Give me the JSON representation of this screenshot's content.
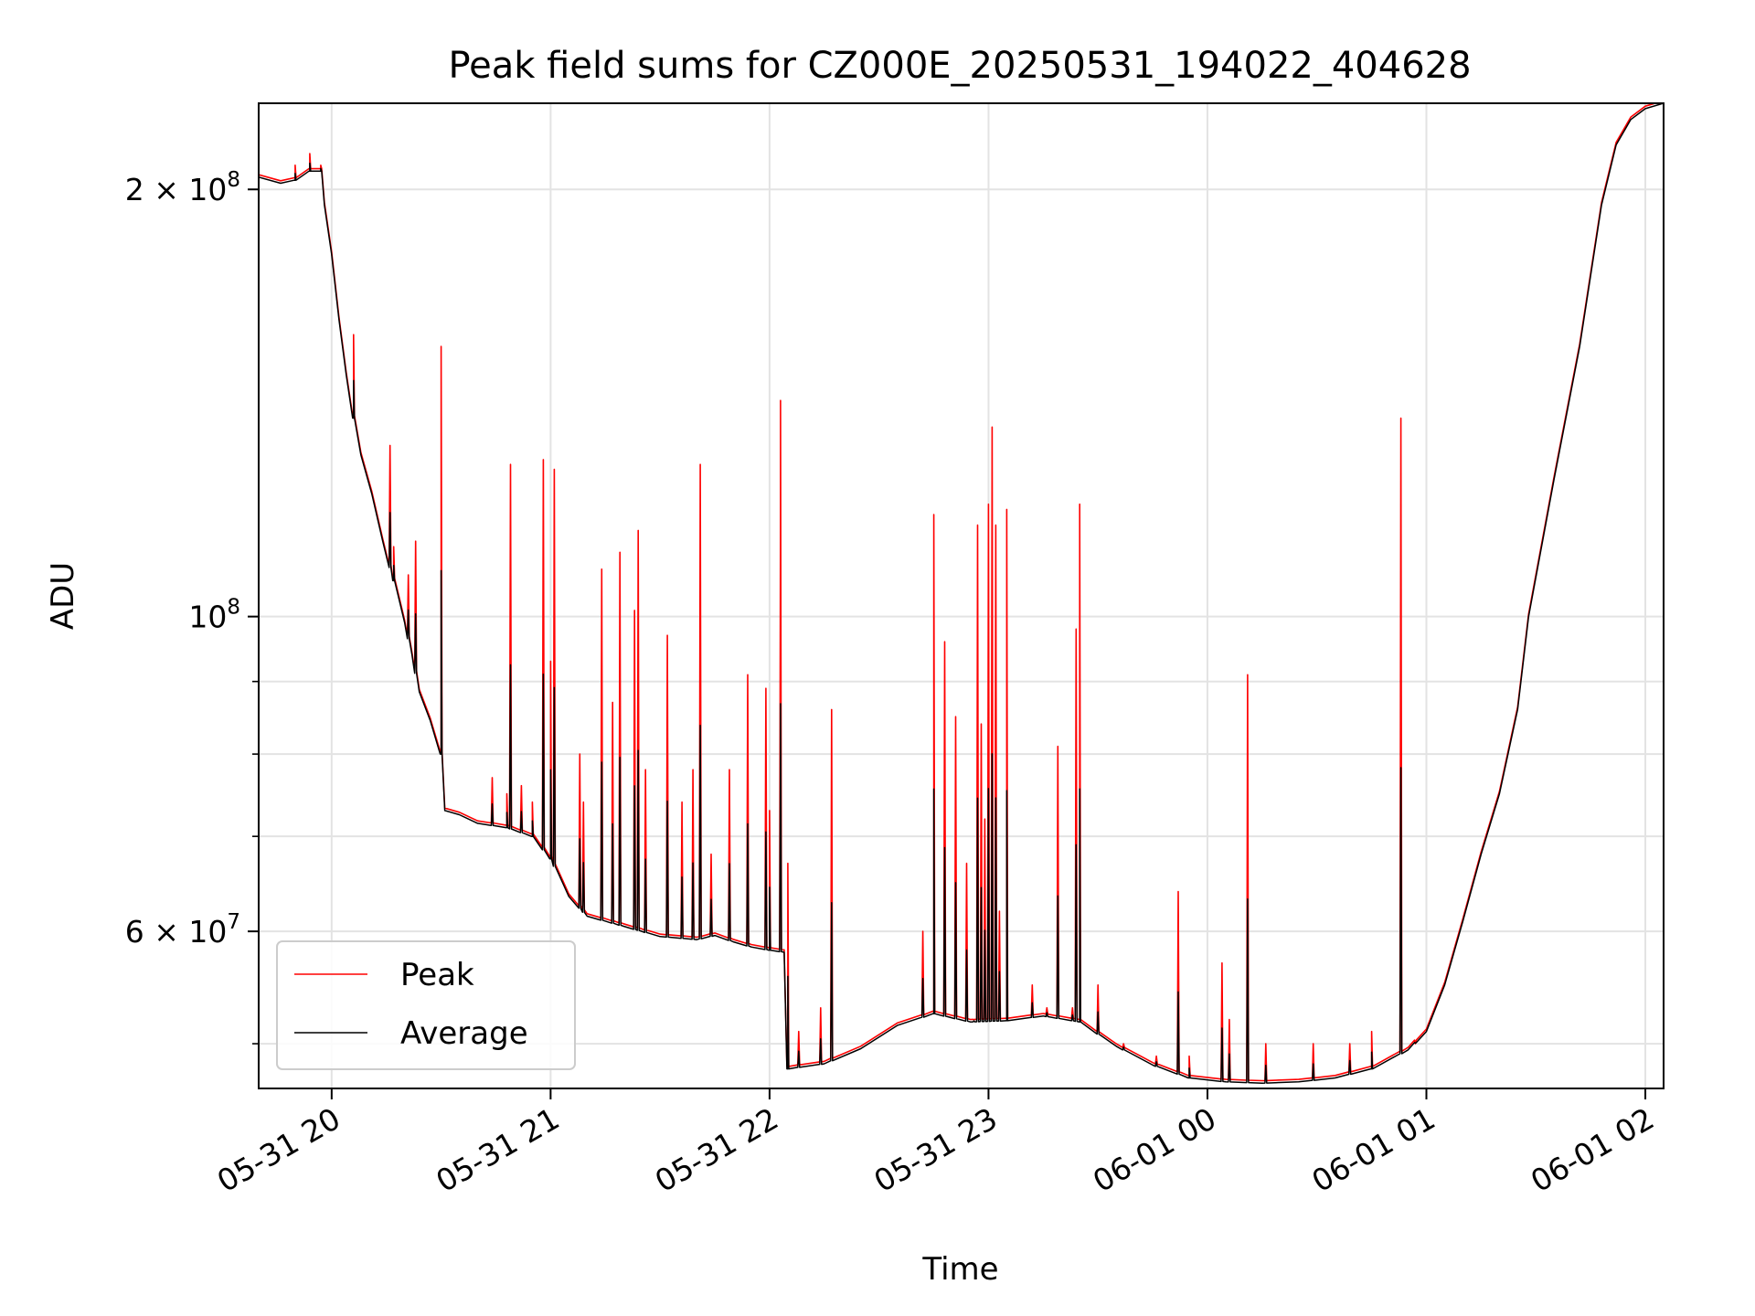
{
  "chart_data": {
    "type": "line",
    "title": "Peak field sums for CZ000E_20250531_194022_404628",
    "xlabel": "Time",
    "ylabel": "ADU",
    "yscale": "log",
    "xlim": [
      "2025-05-31 19:40",
      "2025-06-01 02:05"
    ],
    "ylim": [
      46500000,
      230000000
    ],
    "grid": true,
    "legend_position": "lower-left",
    "x_ticks": [
      {
        "t": "2025-05-31 20:00",
        "label": "05-31 20"
      },
      {
        "t": "2025-05-31 21:00",
        "label": "05-31 21"
      },
      {
        "t": "2025-05-31 22:00",
        "label": "05-31 22"
      },
      {
        "t": "2025-05-31 23:00",
        "label": "05-31 23"
      },
      {
        "t": "2025-06-01 00:00",
        "label": "06-01 00"
      },
      {
        "t": "2025-06-01 01:00",
        "label": "06-01 01"
      },
      {
        "t": "2025-06-01 02:00",
        "label": "06-01 02"
      }
    ],
    "y_major_ticks": [
      {
        "v": 60000000,
        "label": "6 × 10",
        "exp": "7"
      },
      {
        "v": 100000000,
        "label": "10",
        "exp": "8"
      },
      {
        "v": 200000000,
        "label": "2 × 10",
        "exp": "8"
      }
    ],
    "y_minor_ticks": [
      50000000,
      70000000,
      80000000,
      90000000
    ],
    "series": [
      {
        "name": "Peak",
        "color": "#ff0000",
        "base_ref": "Average",
        "spikes": [
          [
            "2025-05-31 19:50",
            208000000
          ],
          [
            "2025-05-31 19:54",
            212000000
          ],
          [
            "2025-05-31 19:57",
            208000000
          ],
          [
            "2025-05-31 20:06",
            158000000
          ],
          [
            "2025-05-31 20:16",
            132000000
          ],
          [
            "2025-05-31 20:17",
            112000000
          ],
          [
            "2025-05-31 20:21",
            107000000
          ],
          [
            "2025-05-31 20:23",
            113000000
          ],
          [
            "2025-05-31 20:30",
            155000000
          ],
          [
            "2025-05-31 20:44",
            77000000
          ],
          [
            "2025-05-31 20:48",
            75000000
          ],
          [
            "2025-05-31 20:49",
            128000000
          ],
          [
            "2025-05-31 20:52",
            76000000
          ],
          [
            "2025-05-31 20:55",
            74000000
          ],
          [
            "2025-05-31 20:58",
            129000000
          ],
          [
            "2025-05-31 21:00",
            93000000
          ],
          [
            "2025-05-31 21:01",
            127000000
          ],
          [
            "2025-05-31 21:08",
            80000000
          ],
          [
            "2025-05-31 21:09",
            74000000
          ],
          [
            "2025-05-31 21:14",
            108000000
          ],
          [
            "2025-05-31 21:17",
            87000000
          ],
          [
            "2025-05-31 21:19",
            111000000
          ],
          [
            "2025-05-31 21:23",
            101000000
          ],
          [
            "2025-05-31 21:24",
            115000000
          ],
          [
            "2025-05-31 21:26",
            78000000
          ],
          [
            "2025-05-31 21:32",
            97000000
          ],
          [
            "2025-05-31 21:36",
            74000000
          ],
          [
            "2025-05-31 21:39",
            78000000
          ],
          [
            "2025-05-31 21:41",
            128000000
          ],
          [
            "2025-05-31 21:44",
            68000000
          ],
          [
            "2025-05-31 21:49",
            78000000
          ],
          [
            "2025-05-31 21:54",
            91000000
          ],
          [
            "2025-05-31 21:59",
            89000000
          ],
          [
            "2025-05-31 22:00",
            73000000
          ],
          [
            "2025-05-31 22:03",
            120000000
          ],
          [
            "2025-05-31 22:03",
            142000000
          ],
          [
            "2025-05-31 22:05",
            67000000
          ],
          [
            "2025-05-31 22:08",
            51000000
          ],
          [
            "2025-05-31 22:14",
            53000000
          ],
          [
            "2025-05-31 22:17",
            86000000
          ],
          [
            "2025-05-31 22:42",
            60000000
          ],
          [
            "2025-05-31 22:45",
            118000000
          ],
          [
            "2025-05-31 22:48",
            96000000
          ],
          [
            "2025-05-31 22:51",
            85000000
          ],
          [
            "2025-05-31 22:54",
            67000000
          ],
          [
            "2025-05-31 22:56",
            52000000
          ],
          [
            "2025-05-31 22:57",
            116000000
          ],
          [
            "2025-05-31 22:58",
            84000000
          ],
          [
            "2025-05-31 22:59",
            72000000
          ],
          [
            "2025-05-31 23:00",
            120000000
          ],
          [
            "2025-05-31 23:01",
            136000000
          ],
          [
            "2025-05-31 23:02",
            116000000
          ],
          [
            "2025-05-31 23:03",
            62000000
          ],
          [
            "2025-05-31 23:05",
            119000000
          ],
          [
            "2025-05-31 23:12",
            55000000
          ],
          [
            "2025-05-31 23:16",
            53000000
          ],
          [
            "2025-05-31 23:19",
            81000000
          ],
          [
            "2025-05-31 23:23",
            53000000
          ],
          [
            "2025-05-31 23:24",
            98000000
          ],
          [
            "2025-05-31 23:25",
            120000000
          ],
          [
            "2025-05-31 23:30",
            55000000
          ],
          [
            "2025-05-31 23:37",
            50000000
          ],
          [
            "2025-05-31 23:46",
            49000000
          ],
          [
            "2025-05-31 23:52",
            64000000
          ],
          [
            "2025-05-31 23:55",
            49000000
          ],
          [
            "2025-06-01 00:04",
            57000000
          ],
          [
            "2025-06-01 00:06",
            52000000
          ],
          [
            "2025-06-01 00:11",
            91000000
          ],
          [
            "2025-06-01 00:16",
            50000000
          ],
          [
            "2025-06-01 00:29",
            50000000
          ],
          [
            "2025-06-01 00:39",
            50000000
          ],
          [
            "2025-06-01 00:45",
            51000000
          ],
          [
            "2025-06-01 00:53",
            138000000
          ],
          [
            "2025-06-01 00:57",
            50000000
          ]
        ]
      },
      {
        "name": "Average",
        "color": "#000000",
        "points": [
          [
            "2025-05-31 19:40",
            204000000
          ],
          [
            "2025-05-31 19:46",
            202000000
          ],
          [
            "2025-05-31 19:50",
            203000000
          ],
          [
            "2025-05-31 19:54",
            206000000
          ],
          [
            "2025-05-31 19:57",
            206000000
          ],
          [
            "2025-05-31 19:58",
            195000000
          ],
          [
            "2025-05-31 20:00",
            180000000
          ],
          [
            "2025-05-31 20:02",
            162000000
          ],
          [
            "2025-05-31 20:04",
            148000000
          ],
          [
            "2025-05-31 20:06",
            138000000
          ],
          [
            "2025-05-31 20:08",
            130000000
          ],
          [
            "2025-05-31 20:11",
            122000000
          ],
          [
            "2025-05-31 20:14",
            113000000
          ],
          [
            "2025-05-31 20:17",
            106000000
          ],
          [
            "2025-05-31 20:20",
            99000000
          ],
          [
            "2025-05-31 20:22",
            94000000
          ],
          [
            "2025-05-31 20:24",
            88500000
          ],
          [
            "2025-05-31 20:27",
            84500000
          ],
          [
            "2025-05-31 20:30",
            80000000
          ],
          [
            "2025-05-31 20:31",
            73000000
          ],
          [
            "2025-05-31 20:35",
            72500000
          ],
          [
            "2025-05-31 20:40",
            71500000
          ],
          [
            "2025-05-31 20:48",
            71000000
          ],
          [
            "2025-05-31 20:55",
            70000000
          ],
          [
            "2025-05-31 21:00",
            67500000
          ],
          [
            "2025-05-31 21:05",
            63500000
          ],
          [
            "2025-05-31 21:10",
            61500000
          ],
          [
            "2025-05-31 21:20",
            60500000
          ],
          [
            "2025-05-31 21:30",
            59500000
          ],
          [
            "2025-05-31 21:40",
            59200000
          ],
          [
            "2025-05-31 21:45",
            59600000
          ],
          [
            "2025-05-31 21:50",
            59000000
          ],
          [
            "2025-05-31 21:55",
            58500000
          ],
          [
            "2025-05-31 22:00",
            58200000
          ],
          [
            "2025-05-31 22:04",
            58000000
          ],
          [
            "2025-05-31 22:05",
            48000000
          ],
          [
            "2025-05-31 22:15",
            48400000
          ],
          [
            "2025-05-31 22:25",
            49600000
          ],
          [
            "2025-05-31 22:35",
            51500000
          ],
          [
            "2025-05-31 22:45",
            52500000
          ],
          [
            "2025-05-31 22:55",
            51800000
          ],
          [
            "2025-05-31 23:05",
            51900000
          ],
          [
            "2025-05-31 23:15",
            52300000
          ],
          [
            "2025-05-31 23:25",
            51800000
          ],
          [
            "2025-05-31 23:35",
            49800000
          ],
          [
            "2025-05-31 23:45",
            48300000
          ],
          [
            "2025-05-31 23:55",
            47300000
          ],
          [
            "2025-06-01 00:05",
            47000000
          ],
          [
            "2025-06-01 00:15",
            46900000
          ],
          [
            "2025-06-01 00:25",
            47000000
          ],
          [
            "2025-06-01 00:35",
            47300000
          ],
          [
            "2025-06-01 00:45",
            48000000
          ],
          [
            "2025-06-01 00:55",
            49500000
          ],
          [
            "2025-06-01 01:00",
            51000000
          ],
          [
            "2025-06-01 01:05",
            55000000
          ],
          [
            "2025-06-01 01:10",
            61000000
          ],
          [
            "2025-06-01 01:15",
            68000000
          ],
          [
            "2025-06-01 01:20",
            75000000
          ],
          [
            "2025-06-01 01:25",
            86000000
          ],
          [
            "2025-06-01 01:28",
            100000000
          ],
          [
            "2025-06-01 01:35",
            125000000
          ],
          [
            "2025-06-01 01:42",
            155000000
          ],
          [
            "2025-06-01 01:48",
            195000000
          ],
          [
            "2025-06-01 01:52",
            215000000
          ],
          [
            "2025-06-01 01:56",
            224000000
          ],
          [
            "2025-06-01 02:00",
            228000000
          ],
          [
            "2025-06-01 02:05",
            230000000
          ]
        ]
      }
    ]
  }
}
